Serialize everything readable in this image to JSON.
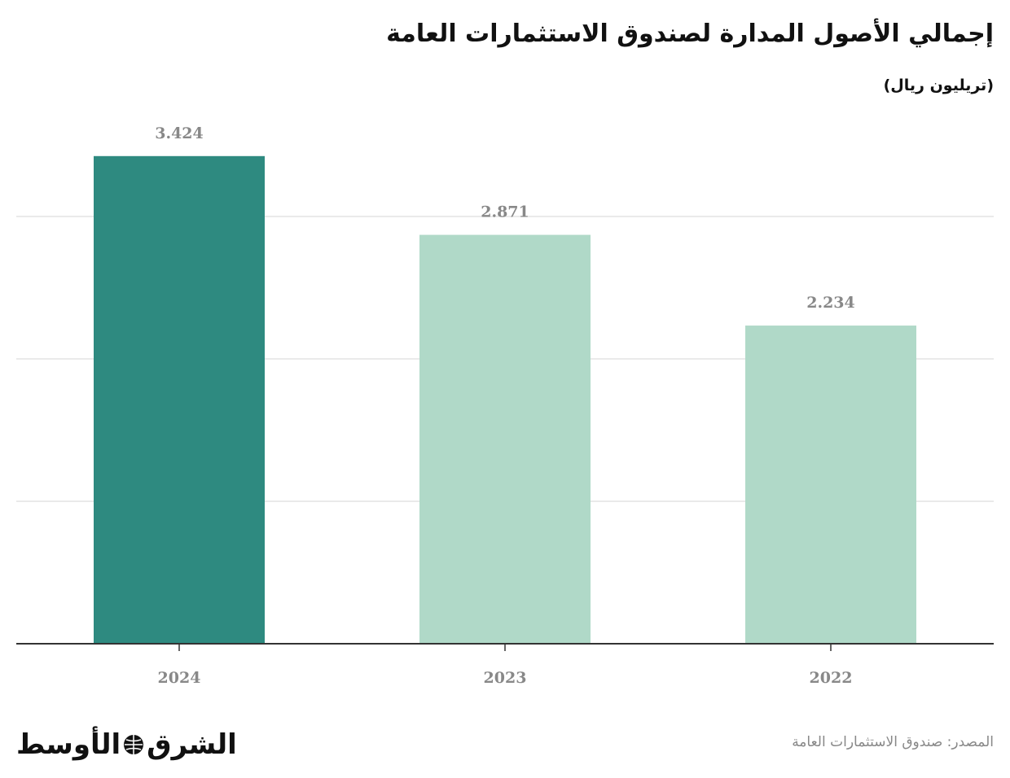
{
  "header": {
    "title": "إجمالي الأصول المدارة لصندوق الاستثمارات العامة",
    "subtitle": "(تريليون ريال)"
  },
  "footer": {
    "source": "المصدر: صندوق الاستثمارات العامة",
    "logo_left": "الشرق",
    "logo_right": "الأوسط"
  },
  "colors": {
    "highlight_bar": "#2e8a80",
    "bar": "#b0d9c8",
    "grid": "#e3e3e3",
    "axis": "#333333",
    "label": "#888888"
  },
  "chart_data": {
    "type": "bar",
    "categories": [
      "2024",
      "2023",
      "2022"
    ],
    "values": [
      3.424,
      2.871,
      2.234
    ],
    "value_labels": [
      "3.424",
      "2.871",
      "2.234"
    ],
    "title": "إجمالي الأصول المدارة لصندوق الاستثمارات العامة",
    "subtitle": "(تريليون ريال)",
    "xlabel": "",
    "ylabel": "",
    "ylim": [
      0,
      3.6
    ],
    "gridlines": [
      1,
      2,
      3
    ],
    "grid": true,
    "y_tick_labels_shown": false,
    "highlight_category": "2024"
  }
}
